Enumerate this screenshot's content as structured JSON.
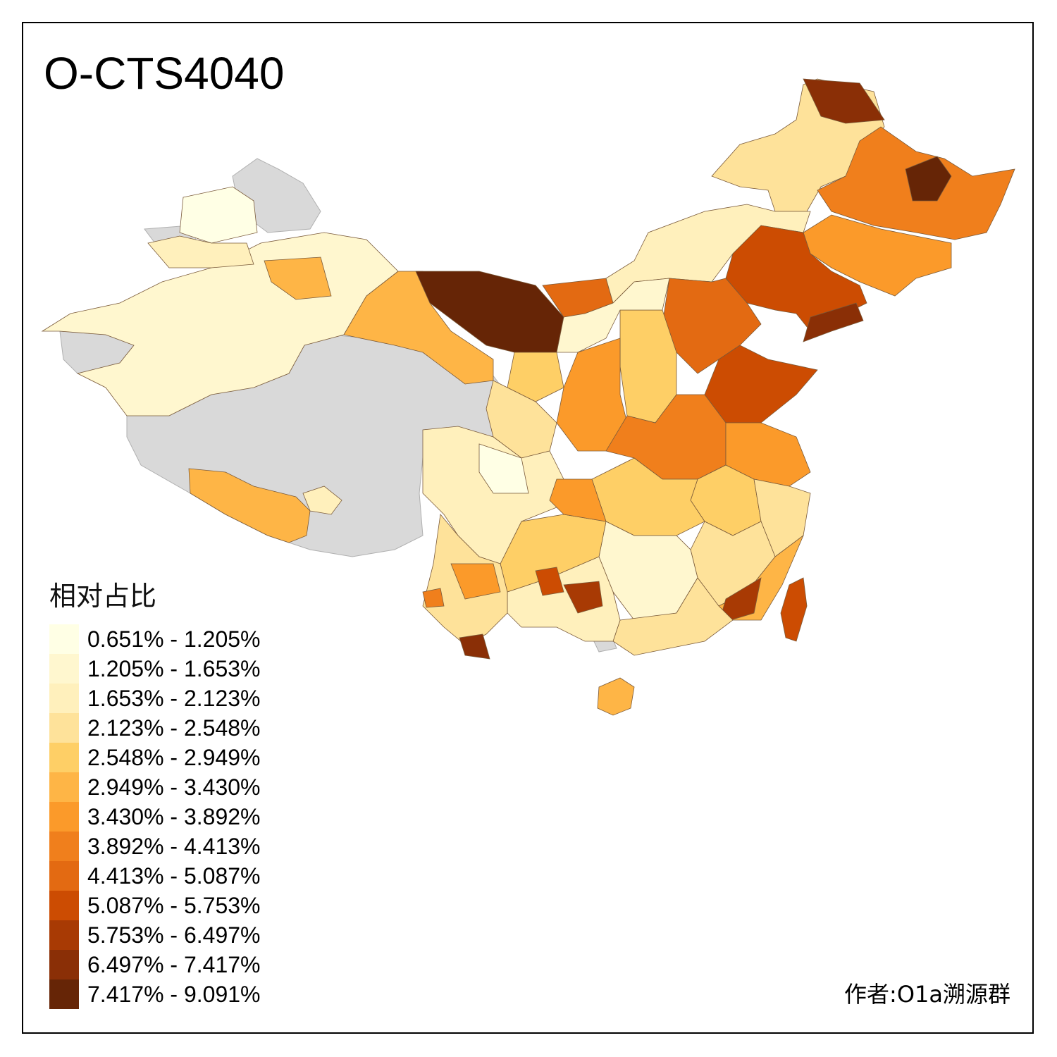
{
  "title": "O-CTS4040",
  "legend": {
    "title": "相对占比",
    "items": [
      {
        "label": "0.651% - 1.205%",
        "color": "#ffffe5"
      },
      {
        "label": "1.205% - 1.653%",
        "color": "#fff7cf"
      },
      {
        "label": "1.653% - 2.123%",
        "color": "#fff0bc"
      },
      {
        "label": "2.123% - 2.548%",
        "color": "#fee29a"
      },
      {
        "label": "2.548% - 2.949%",
        "color": "#fecf66"
      },
      {
        "label": "2.949% - 3.430%",
        "color": "#feb546"
      },
      {
        "label": "3.430% - 3.892%",
        "color": "#fb9a2a"
      },
      {
        "label": "3.892% - 4.413%",
        "color": "#f07f1c"
      },
      {
        "label": "4.413% - 5.087%",
        "color": "#e36a12"
      },
      {
        "label": "5.087% - 5.753%",
        "color": "#cc4c02"
      },
      {
        "label": "5.753% - 6.497%",
        "color": "#a83a04"
      },
      {
        "label": "6.497% - 7.417%",
        "color": "#8a2f06"
      },
      {
        "label": "7.417% - 9.091%",
        "color": "#662506"
      }
    ]
  },
  "nodata_color": "#d9d9d9",
  "credit": "作者:O1a溯源群"
}
